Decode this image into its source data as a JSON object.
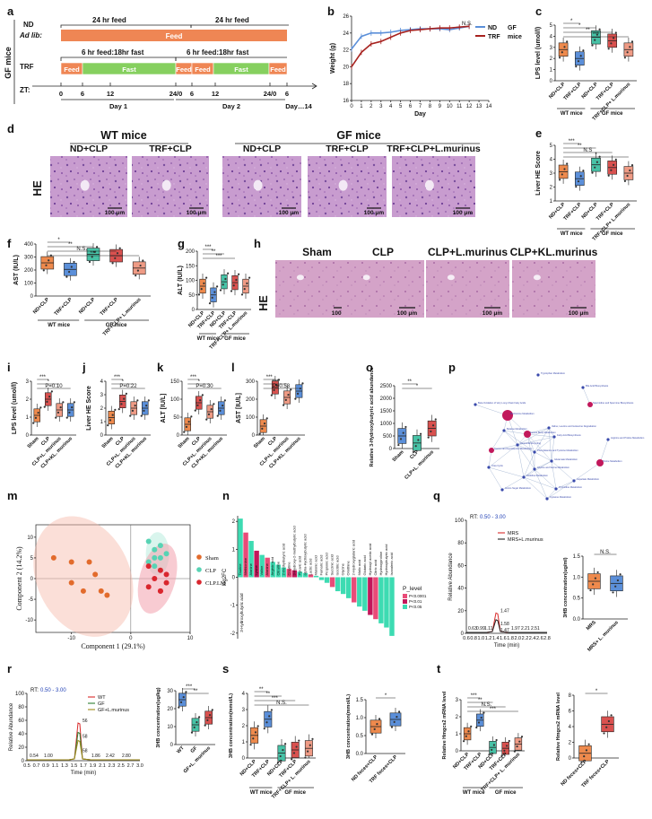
{
  "colors": {
    "orange": "#ee8a4d",
    "blue": "#5b8fd9",
    "teal": "#47c2a6",
    "red": "#d9514f",
    "salmon": "#ef9b85",
    "darkred": "#a7221f",
    "feed_orange": "#ef8654",
    "fast_green": "#86d05f",
    "he_pink": "#d3a5cf",
    "hist_green": "#3ddbb2",
    "hist_pink": "#e94b78"
  },
  "panel_labels": [
    "a",
    "b",
    "c",
    "d",
    "e",
    "f",
    "g",
    "h",
    "i",
    "j",
    "k",
    "l",
    "o",
    "p",
    "m",
    "n",
    "q",
    "r",
    "s",
    "t"
  ],
  "panel_a": {
    "side_label": "GF mice",
    "nd_label": "ND",
    "adlib_label": "Ad lib:",
    "trf_label": "TRF",
    "zt_label": "ZT:",
    "feed24_1": "24 hr feed",
    "feed24_2": "24 hr feed",
    "feed_bar": "Feed",
    "trf_cycle_1": "6 hr feed:18hr fast",
    "trf_cycle_2": "6 hr feed:18hr fast",
    "segments": [
      "Feed",
      "Fast",
      "Feed",
      "Feed",
      "Fast",
      "Feed"
    ],
    "ticks": [
      "0",
      "6",
      "12",
      "24/0",
      "6",
      "12",
      "24/0",
      "6"
    ],
    "days": [
      "Day 1",
      "Day 2",
      "Day…14"
    ]
  },
  "panel_b": {
    "ylabel": "Weight (g)",
    "xlabel": "Day",
    "ns": "N.S.",
    "legend": [
      "ND",
      "TRF"
    ],
    "legend_group": "GF\nmice",
    "chart_data": {
      "type": "line",
      "x": [
        0,
        1,
        2,
        3,
        4,
        5,
        6,
        7,
        8,
        9,
        10,
        11,
        12
      ],
      "series": [
        {
          "name": "ND",
          "values": [
            22.1,
            23.6,
            24.0,
            24.0,
            24.1,
            24.3,
            24.4,
            24.5,
            24.5,
            24.5,
            24.4,
            24.6,
            24.8
          ]
        },
        {
          "name": "TRF",
          "values": [
            20.0,
            21.7,
            22.7,
            23.0,
            23.5,
            24.0,
            24.3,
            24.4,
            24.5,
            24.6,
            24.6,
            24.7,
            24.8
          ]
        }
      ],
      "xticks": [
        "0",
        "1",
        "2",
        "3",
        "4",
        "5",
        "6",
        "7",
        "8",
        "9",
        "10",
        "11",
        "12",
        "13",
        "14"
      ],
      "yticks": [
        "16",
        "18",
        "20",
        "22",
        "24",
        "26"
      ],
      "ylim": [
        16,
        26
      ],
      "xlim": [
        0,
        14
      ]
    }
  },
  "panel_c": {
    "ylabel": "LPS level (umol/l)",
    "xcats": [
      "ND+CLP",
      "TRF+CLP",
      "ND+CLP",
      "TRF+CLP",
      "TRF+CLP+\nL.murinus"
    ],
    "yticks": [
      "0",
      "1",
      "2",
      "3",
      "4",
      "5"
    ],
    "groups": [
      "WT mice",
      "GF mice"
    ],
    "sig": [
      "*",
      "*",
      "**",
      "***",
      "N.S.",
      "**"
    ],
    "chart_data": {
      "type": "box",
      "values": [
        2.8,
        2.0,
        3.9,
        3.6,
        2.8
      ],
      "ylim": [
        0,
        5
      ]
    }
  },
  "panel_d": {
    "wt_header": "WT mice",
    "gf_header": "GF mice",
    "col_labels": [
      "ND+CLP",
      "TRF+CLP",
      "ND+CLP",
      "TRF+CLP",
      "TRF+CLP+L.murinus"
    ],
    "row_label": "HE",
    "scale": "100 μm"
  },
  "panel_e": {
    "ylabel": "Liver HE Score",
    "xcats": [
      "ND+CLP",
      "TRF+CLP",
      "ND+CLP",
      "TRF+CLP",
      "TRF+CLP+\nL.murinus"
    ],
    "yticks": [
      "1",
      "2",
      "3",
      "4",
      "5"
    ],
    "groups": [
      "WT mice",
      "GF mice"
    ],
    "sig": [
      "***",
      "**",
      "N.S",
      "*",
      "**"
    ],
    "chart_data": {
      "type": "box",
      "values": [
        3.1,
        2.6,
        3.6,
        3.4,
        3.0
      ],
      "ylim": [
        1,
        5
      ]
    }
  },
  "panel_f": {
    "ylabel": "AST (IU/L)",
    "xcats": [
      "ND+CLP",
      "TRF+CLP",
      "ND+CLP",
      "TRF+CLP",
      "TRF+CLP+\nL.murinus"
    ],
    "yticks": [
      "0",
      "100",
      "200",
      "300",
      "400"
    ],
    "groups": [
      "WT mice",
      "GF mice"
    ],
    "sig": [
      "*",
      "**",
      "N.S.",
      "***"
    ],
    "chart_data": {
      "type": "box",
      "values": [
        255,
        205,
        320,
        310,
        215
      ],
      "ylim": [
        0,
        400
      ]
    }
  },
  "panel_g": {
    "ylabel": "ALT (IU/L)",
    "xcats": [
      "ND+CLP",
      "TRF+CLP",
      "ND+CLP",
      "TRF+CLP",
      "TRF+CLP+\nL.murinus"
    ],
    "yticks": [
      "0",
      "50",
      "100",
      "150",
      "200"
    ],
    "groups": [
      "WT mice",
      "GF mice"
    ],
    "sig": [
      "***",
      "**",
      "***",
      "N.S",
      "*"
    ],
    "chart_data": {
      "type": "box",
      "values": [
        80,
        50,
        95,
        92,
        80
      ],
      "ylim": [
        0,
        200
      ]
    }
  },
  "panel_h": {
    "col_labels": [
      "Sham",
      "CLP",
      "CLP+L.murinus",
      "CLP+KL.murinus"
    ],
    "row_label": "HE",
    "scale": "100 μm"
  },
  "panel_i": {
    "ylabel": "LPS level (umol/l)",
    "xcats": [
      "Sham",
      "CLP",
      "CLP+L. murinus",
      "CLP+KL. murinus"
    ],
    "yticks": [
      "0",
      "1",
      "2",
      "3"
    ],
    "sig": [
      "***",
      "*",
      "P=0.10"
    ],
    "chart_data": {
      "type": "box",
      "values": [
        1.1,
        2.0,
        1.4,
        1.4
      ],
      "ylim": [
        0,
        3
      ]
    }
  },
  "panel_j": {
    "ylabel": "Liver HE Score",
    "xcats": [
      "Sham",
      "CLP",
      "CLP+L. murinus",
      "CLP+KL. murinus"
    ],
    "yticks": [
      "0",
      "1",
      "2",
      "3",
      "4"
    ],
    "sig": [
      "***",
      "*",
      "P=0.22"
    ],
    "chart_data": {
      "type": "box",
      "values": [
        1.3,
        2.5,
        2.0,
        2.0
      ],
      "ylim": [
        0,
        4
      ]
    }
  },
  "panel_k": {
    "ylabel": "ALT [IU/L]",
    "xcats": [
      "Sham",
      "CLP",
      "CLP+L. murinus",
      "CLP+KL. murinus"
    ],
    "yticks": [
      "0",
      "50",
      "100",
      "150"
    ],
    "sig": [
      "***",
      "*",
      "P=0.30"
    ],
    "chart_data": {
      "type": "box",
      "values": [
        30,
        90,
        65,
        75
      ],
      "ylim": [
        0,
        150
      ]
    }
  },
  "panel_l": {
    "ylabel": "AST [IU/L]",
    "xcats": [
      "Sham",
      "CLP",
      "CLP+L. murinus",
      "CLP+KL. murinus"
    ],
    "yticks": [
      "0",
      "100",
      "200",
      "300"
    ],
    "sig": [
      "***",
      "***",
      "P=0.58"
    ],
    "chart_data": {
      "type": "box",
      "values": [
        50,
        265,
        210,
        245
      ],
      "ylim": [
        0,
        300
      ]
    }
  },
  "panel_o": {
    "ylabel": "Relative 3-Hydroxybutyric acid abundance",
    "xcats": [
      "Sham",
      "CLP",
      "CLP+L. murinus"
    ],
    "yticks": [
      "0",
      "500",
      "1000",
      "1500",
      "2000",
      "2500"
    ],
    "sig": [
      "**",
      "*"
    ],
    "chart_data": {
      "type": "box",
      "values": [
        500,
        220,
        800
      ],
      "ylim": [
        0,
        2500
      ]
    }
  },
  "panel_p": {
    "nodes": [
      "Tryptophan Metabolism",
      "Bile Acid Biosynthesis",
      "Beta Oxidation of Very Long Chain Fatty Acids",
      "Spermidine and Spermine Biosynthesis",
      "Methionine Metabolism",
      "Valine, Leucine and Isoleucine Degradation",
      "Betaine Metabolism",
      "Ketone Body Metabolism",
      "Fatty Acid Biosynthesis",
      "Arginine and Proline Metabolism",
      "Ammonia Recycling",
      "Taurine and Hypotaurine Metabolism",
      "Phenylalanine and Tyrosine Metabolism",
      "Glutamate Metabolism",
      "Purine Metabolism",
      "Urea Cycle",
      "Glycine and Serine Metabolism",
      "Histidine Metabolism",
      "Aspartate Metabolism",
      "Pyrimidine Metabolism",
      "Amino Sugar Metabolism",
      "Cysteine Metabolism"
    ]
  },
  "panel_m": {
    "xlabel": "Component 1 (29.1%)",
    "ylabel": "Component 2 (14.2%)",
    "xticks": [
      "-10",
      "0",
      "10"
    ],
    "yticks": [
      "-10",
      "-5",
      "0",
      "5",
      "10"
    ],
    "legend": [
      "Sham",
      "CLP",
      "CLP.LM"
    ],
    "chart_data": {
      "type": "scatter",
      "series": [
        {
          "name": "Sham",
          "x": [
            -13,
            -10,
            -7,
            -6,
            -10,
            -8,
            -4,
            -5
          ],
          "y": [
            5,
            4,
            4,
            1,
            -1,
            -3,
            -4,
            -3
          ]
        },
        {
          "name": "CLP",
          "x": [
            3,
            5,
            4,
            6,
            5,
            3,
            4,
            4
          ],
          "y": [
            9,
            8,
            7,
            6,
            5,
            4,
            3,
            5
          ]
        },
        {
          "name": "CLP.LM",
          "x": [
            3,
            5,
            6,
            4,
            6,
            3,
            5,
            5
          ],
          "y": [
            3,
            2,
            1,
            0,
            -1,
            -2,
            -3,
            -3
          ]
        }
      ],
      "xlim": [
        -16,
        10
      ],
      "ylim": [
        -13,
        13
      ]
    }
  },
  "panel_n": {
    "ylabel": "log2FC",
    "yticks": [
      "2",
      "1",
      "0",
      "-1",
      "-2"
    ],
    "legend_title": "P_level",
    "legend": [
      "P<0.0001",
      "P<0.01",
      "P<0.05"
    ],
    "highlight_label": "3-Hydroxybutyric acid",
    "labels": [
      "Taurine",
      "Methionine",
      "Alanine",
      "Lysine",
      "Valine",
      "Alanine",
      "Arginic acid",
      "Citrulline",
      "2-methylbutyric acid",
      "Creatine",
      "3-Hydroxy-2-methylbutyric acid",
      "Pyruvic acid",
      "alpha-Hydroxybutyric acid",
      "Lactic acid",
      "Malonic acid",
      "Fumaric acid",
      "Propionic acid",
      "Succinic acid",
      "Isocitric acid",
      "Glycine",
      "Ornithine",
      "2-Hydroxyglutaric acid",
      "Malic acid",
      "Glutaric acid",
      "Hydroxyl acetic acid",
      "Citric acid",
      "Hydroxyproline",
      "Hydroxybutyric acid",
      "Isovaleric acid"
    ],
    "chart_data": {
      "type": "bar",
      "values": [
        2.1,
        1.6,
        1.3,
        0.95,
        0.8,
        0.7,
        0.55,
        0.45,
        0.35,
        0.3,
        0.25,
        0.2,
        0.15,
        0.1,
        0.05,
        -0.1,
        -0.2,
        -0.35,
        -0.5,
        -0.6,
        -0.75,
        -0.9,
        -1.05,
        -1.2,
        -1.35,
        -1.5,
        -1.65,
        -1.8,
        -2.1
      ],
      "ylim": [
        -2.2,
        2.2
      ]
    }
  },
  "panel_q": {
    "rt": "RT:0.50 - 3.00",
    "legend": [
      "MRS",
      "MRS+L.murinus"
    ],
    "ylabel": "Relative Abundance",
    "xlabel": "Time (min)",
    "yticks": [
      "0",
      "20",
      "40",
      "60",
      "80",
      "100"
    ],
    "xticks": [
      "0.6",
      "0.8",
      "1.0",
      "1.2",
      "1.4",
      "1.6",
      "1.8",
      "2.0",
      "2.2",
      "2.4",
      "2.6",
      "2.8"
    ],
    "peak_labels": [
      "0.63",
      "0.99",
      "1.11",
      "1.47",
      "1.58",
      "1.47",
      "1.97",
      "2.21",
      "2.51"
    ],
    "bar_ylabel": "3HB concentration(ug/ml)",
    "bar_xcats": [
      "MRS",
      "MRS+ L. murinus"
    ],
    "bar_yticks": [
      "0.0",
      "0.5",
      "1.0",
      "1.5"
    ],
    "sig": "N.S.",
    "chart_data": {
      "type": "box",
      "values": [
        0.9,
        0.85
      ],
      "ylim": [
        0,
        1.5
      ]
    }
  },
  "panel_r": {
    "rt": "RT:0.50 - 3.00",
    "legend": [
      "WT",
      "GF",
      "GF+L.murinus"
    ],
    "ylabel": "Relative Abundance",
    "xlabel": "Time (min)",
    "yticks": [
      "0",
      "20",
      "40",
      "60",
      "80",
      "100"
    ],
    "xticks": [
      "0.5",
      "0.7",
      "0.9",
      "1.1",
      "1.3",
      "1.5",
      "1.7",
      "1.9",
      "2.1",
      "2.3",
      "2.5",
      "2.7",
      "3.0"
    ],
    "peak_labels": [
      "56",
      "58",
      "58",
      "0.54",
      "1.00",
      "1.86",
      "2.42",
      "2.80"
    ],
    "bar_ylabel": "3HB concentration(ug/kg)",
    "bar_xcats": [
      "WT",
      "GF",
      "GF+L. murinus"
    ],
    "bar_yticks": [
      "0",
      "10",
      "20",
      "30"
    ],
    "sig": [
      "***",
      "**"
    ],
    "chart_data": {
      "type": "box",
      "values": [
        25,
        11,
        15
      ],
      "ylim": [
        0,
        30
      ]
    }
  },
  "panel_s": {
    "ylabel": "3HB concentration(mmol/L)",
    "xcats": [
      "ND+CLP",
      "TRF+CLP",
      "ND+CLP",
      "TRF+CLP",
      "TRF+CLP+ L. murinus"
    ],
    "yticks": [
      "0",
      "1",
      "2",
      "3",
      "4"
    ],
    "groups": [
      "WT mice",
      "GF mice"
    ],
    "sig": [
      "**",
      "**",
      "***",
      "N.S.",
      "**"
    ],
    "chart_data": {
      "type": "box",
      "values": [
        1.4,
        2.4,
        0.3,
        0.5,
        0.6
      ],
      "ylim": [
        0,
        4
      ]
    },
    "ylabel2": "3HB concentration(mmol/L)",
    "xcats2": [
      "ND feces+CLP",
      "TRF feces+CLP"
    ],
    "yticks2": [
      "0.0",
      "0.5",
      "1.0",
      "1.5"
    ],
    "sig2": "*",
    "chart_data_2": {
      "type": "box",
      "values": [
        0.75,
        0.95
      ],
      "ylim": [
        0,
        1.5
      ]
    }
  },
  "panel_t": {
    "ylabel": "Relative Hmgcs2 mRNA level",
    "xcats": [
      "ND+CLP",
      "TRF+CLP",
      "ND+CLP",
      "TRF+CLP",
      "TRF+CLP+ L. murinus"
    ],
    "yticks": [
      "0",
      "1",
      "2",
      "3"
    ],
    "groups": [
      "WT mice",
      "GF mice"
    ],
    "sig": [
      "***",
      "**",
      "N.S.",
      "***"
    ],
    "chart_data": {
      "type": "box",
      "values": [
        1.0,
        1.8,
        0.2,
        0.15,
        0.4
      ],
      "ylim": [
        0,
        3
      ]
    },
    "ylabel2": "Relative Hmgcs2 mRNA level",
    "xcats2": [
      "ND feces+CLP",
      "TRF feces+CLP"
    ],
    "yticks2": [
      "0",
      "2",
      "4",
      "6",
      "8"
    ],
    "sig2": "*",
    "chart_data_2": {
      "type": "box",
      "values": [
        0.6,
        4.3
      ],
      "ylim": [
        0,
        8
      ]
    }
  }
}
